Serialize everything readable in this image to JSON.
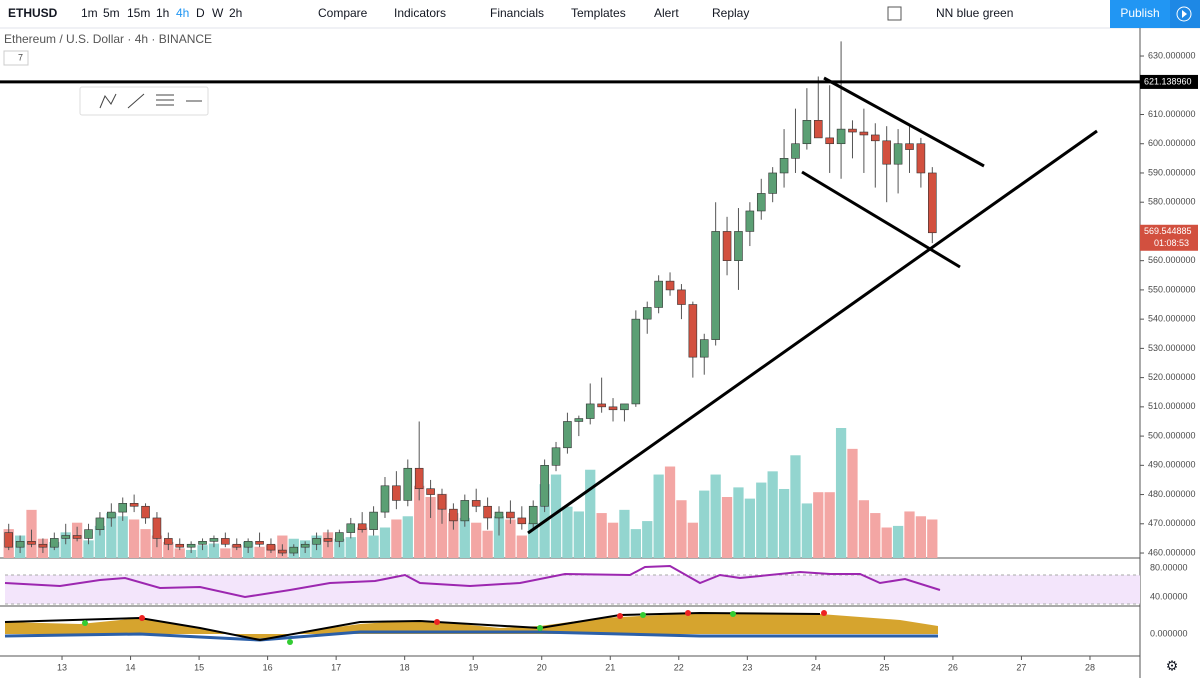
{
  "toolbar": {
    "symbol": "ETHUSD",
    "intervals": [
      "1m",
      "5m",
      "15m",
      "1h",
      "4h",
      "D",
      "W",
      "2h"
    ],
    "active_interval": "4h",
    "buttons": [
      "Compare",
      "Indicators",
      "Financials",
      "Templates",
      "Alert",
      "Replay"
    ],
    "theme": "NN blue green",
    "publish": "Publish"
  },
  "legend": {
    "title": "Ethereum / U.S. Dollar · 4h · BINANCE",
    "count": "7"
  },
  "chart_data": {
    "type": "candlestick",
    "up_color": "#5b9f74",
    "down_color": "#d2503f",
    "volume_up_color": "#93d5cf",
    "volume_down_color": "#f3a6a4",
    "open": [
      467,
      462,
      464,
      463,
      462,
      465,
      466,
      465,
      468,
      472,
      474,
      477,
      476,
      472,
      465,
      463,
      462,
      463,
      464,
      465,
      463,
      462,
      464,
      463,
      461,
      460,
      462,
      463,
      465,
      464,
      467,
      470,
      468,
      474,
      483,
      478,
      489,
      482,
      480,
      475,
      471,
      478,
      476,
      472,
      474,
      472,
      470,
      476,
      490,
      496,
      505,
      506,
      511,
      510,
      509,
      511,
      540,
      544,
      553,
      550,
      545,
      527,
      533,
      570,
      560,
      570,
      577,
      583,
      590,
      595,
      600,
      608,
      602,
      600,
      605,
      604,
      603,
      601,
      593,
      600,
      600,
      590
    ],
    "high": [
      470,
      466,
      468,
      465,
      467,
      470,
      469,
      470,
      474,
      477,
      479,
      480,
      477,
      474,
      467,
      465,
      464,
      465,
      466,
      467,
      465,
      465,
      467,
      465,
      463,
      463,
      464,
      467,
      468,
      468,
      472,
      474,
      476,
      486,
      488,
      492,
      505,
      485,
      482,
      477,
      480,
      482,
      479,
      476,
      478,
      476,
      478,
      492,
      498,
      508,
      507,
      518,
      520,
      513,
      511,
      543,
      546,
      555,
      556,
      552,
      546,
      535,
      580,
      575,
      578,
      580,
      588,
      592,
      605,
      612,
      619,
      623,
      620,
      635,
      608,
      612,
      607,
      606,
      605,
      606,
      602,
      592
    ],
    "low": [
      461,
      460,
      462,
      460,
      461,
      463,
      464,
      463,
      466,
      469,
      471,
      474,
      470,
      462,
      461,
      461,
      460,
      461,
      462,
      462,
      461,
      460,
      462,
      460,
      459,
      459,
      460,
      461,
      462,
      462,
      465,
      467,
      466,
      472,
      475,
      476,
      478,
      472,
      470,
      468,
      469,
      474,
      468,
      466,
      470,
      468,
      468,
      474,
      488,
      494,
      500,
      504,
      508,
      505,
      505,
      510,
      535,
      542,
      548,
      540,
      520,
      521,
      531,
      555,
      550,
      565,
      574,
      580,
      585,
      590,
      598,
      603,
      590,
      588,
      595,
      590,
      585,
      580,
      583,
      590,
      585,
      566
    ],
    "close": [
      462,
      464,
      463,
      462,
      465,
      466,
      465,
      468,
      472,
      474,
      477,
      476,
      472,
      465,
      463,
      462,
      463,
      464,
      465,
      463,
      462,
      464,
      463,
      461,
      460,
      462,
      463,
      465,
      464,
      467,
      470,
      468,
      474,
      483,
      478,
      489,
      482,
      480,
      475,
      471,
      478,
      476,
      472,
      474,
      472,
      470,
      476,
      490,
      496,
      505,
      506,
      511,
      510,
      509,
      511,
      540,
      544,
      553,
      550,
      545,
      527,
      533,
      570,
      560,
      570,
      577,
      583,
      590,
      595,
      600,
      608,
      602,
      600,
      605,
      604,
      603,
      601,
      593,
      600,
      598,
      590,
      569.544885
    ],
    "volume": [
      18,
      14,
      30,
      12,
      10,
      16,
      22,
      11,
      20,
      28,
      26,
      24,
      18,
      14,
      10,
      6,
      5,
      8,
      9,
      6,
      8,
      10,
      7,
      8,
      14,
      12,
      11,
      14,
      16,
      12,
      13,
      19,
      14,
      19,
      24,
      26,
      45,
      38,
      40,
      28,
      25,
      22,
      17,
      26,
      24,
      14,
      22,
      46,
      52,
      32,
      29,
      55,
      28,
      22,
      30,
      18,
      23,
      52,
      57,
      36,
      22,
      42,
      52,
      38,
      44,
      37,
      47,
      54,
      43,
      64,
      34,
      41,
      41,
      81,
      68,
      36,
      28,
      19,
      20,
      29,
      26,
      24
    ],
    "ylim": [
      458.3,
      638.9
    ],
    "yticks": [
      {
        "value": 460,
        "label": "460.000000"
      },
      {
        "value": 470,
        "label": "470.000000"
      },
      {
        "value": 480,
        "label": "480.000000"
      },
      {
        "value": 490,
        "label": "490.000000"
      },
      {
        "value": 500,
        "label": "500.000000"
      },
      {
        "value": 510,
        "label": "510.000000"
      },
      {
        "value": 520,
        "label": "520.000000"
      },
      {
        "value": 530,
        "label": "530.000000"
      },
      {
        "value": 540,
        "label": "540.000000"
      },
      {
        "value": 550,
        "label": "550.000000"
      },
      {
        "value": 560,
        "label": "560.000000"
      },
      {
        "value": 570,
        "label": "570.000000"
      },
      {
        "value": 580,
        "label": "580.000000"
      },
      {
        "value": 590,
        "label": "590.000000"
      },
      {
        "value": 600,
        "label": "600.000000"
      },
      {
        "value": 610,
        "label": "610.000000"
      },
      {
        "value": 620,
        "label": "620.000000"
      },
      {
        "value": 630,
        "label": "630.000000"
      }
    ],
    "xlim": [
      12.095,
      28.73
    ],
    "xticks": [
      13,
      14,
      15,
      16,
      17,
      18,
      19,
      20,
      21,
      22,
      23,
      24,
      25,
      26,
      27,
      28
    ],
    "hline": {
      "value": 621.13896,
      "label": "621.138960"
    },
    "last_price": {
      "value": 569.544885,
      "label": "569.544885"
    },
    "countdown": "01:08:53"
  },
  "panes": {
    "rsi": {
      "ticks": [
        "80.00000",
        "40.00000"
      ]
    },
    "oscillator": {
      "ticks": [
        "0.000000"
      ]
    }
  }
}
